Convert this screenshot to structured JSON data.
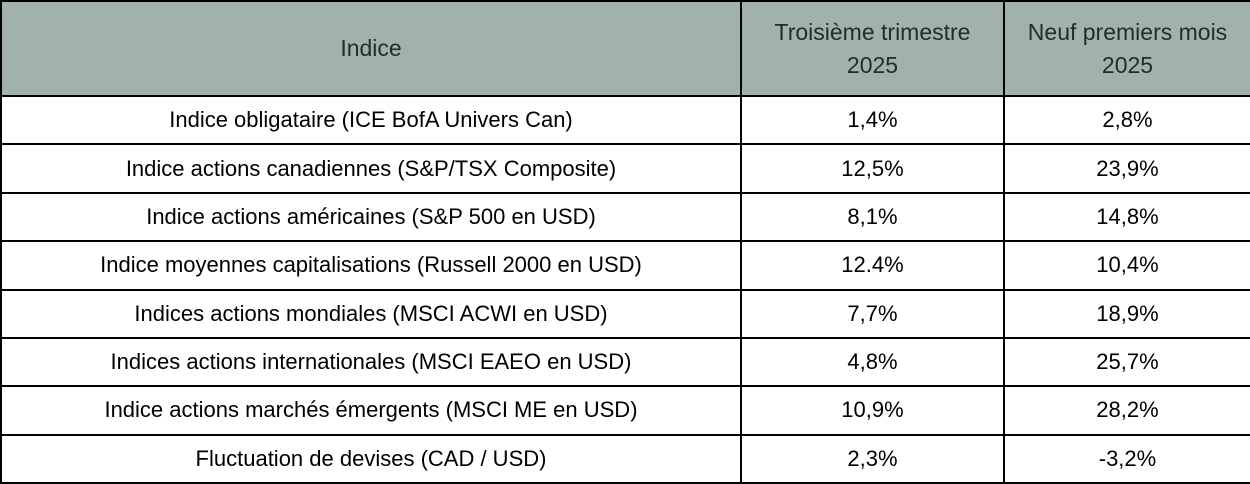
{
  "table": {
    "columns": [
      "Indice",
      "Troisième trimestre 2025",
      "Neuf premiers mois 2025"
    ],
    "rows": [
      {
        "indice": "Indice obligataire (ICE BofA Univers Can)",
        "q3_2025": "1,4%",
        "ytd_2025": "2,8%"
      },
      {
        "indice": "Indice actions canadiennes (S&P/TSX Composite)",
        "q3_2025": "12,5%",
        "ytd_2025": "23,9%"
      },
      {
        "indice": "Indice actions américaines (S&P 500 en USD)",
        "q3_2025": "8,1%",
        "ytd_2025": "14,8%"
      },
      {
        "indice": "Indice moyennes capitalisations (Russell 2000 en USD)",
        "q3_2025": "12.4%",
        "ytd_2025": "10,4%"
      },
      {
        "indice": "Indices actions mondiales (MSCI ACWI en USD)",
        "q3_2025": "7,7%",
        "ytd_2025": "18,9%"
      },
      {
        "indice": "Indices actions internationales (MSCI EAEO en USD)",
        "q3_2025": "4,8%",
        "ytd_2025": "25,7%"
      },
      {
        "indice": "Indice actions marchés émergents (MSCI ME en USD)",
        "q3_2025": "10,9%",
        "ytd_2025": "28,2%"
      },
      {
        "indice": "Fluctuation de devises (CAD / USD)",
        "q3_2025": "2,3%",
        "ytd_2025": "-3,2%"
      }
    ]
  },
  "colors": {
    "header_background": "#a1b2ac",
    "header_text": "#212e2a",
    "border": "#000000",
    "row_background": "#ffffff",
    "body_text": "#000000"
  },
  "chart_data": {
    "type": "table",
    "columns": [
      "Indice",
      "Troisième trimestre 2025",
      "Neuf premiers mois 2025"
    ],
    "rows": [
      [
        "Indice obligataire (ICE BofA Univers Can)",
        "1,4%",
        "2,8%"
      ],
      [
        "Indice actions canadiennes (S&P/TSX Composite)",
        "12,5%",
        "23,9%"
      ],
      [
        "Indice actions américaines (S&P 500 en USD)",
        "8,1%",
        "14,8%"
      ],
      [
        "Indice moyennes capitalisations (Russell 2000 en USD)",
        "12.4%",
        "10,4%"
      ],
      [
        "Indices actions mondiales (MSCI ACWI en USD)",
        "7,7%",
        "18,9%"
      ],
      [
        "Indices actions internationales (MSCI EAEO en USD)",
        "4,8%",
        "25,7%"
      ],
      [
        "Indice actions marchés émergents (MSCI ME en USD)",
        "10,9%",
        "28,2%"
      ],
      [
        "Fluctuation de devises (CAD / USD)",
        "2,3%",
        "-3,2%"
      ]
    ],
    "series": [
      {
        "name": "Troisième trimestre 2025",
        "values_pct": [
          1.4,
          12.5,
          8.1,
          12.4,
          7.7,
          4.8,
          10.9,
          2.3
        ]
      },
      {
        "name": "Neuf premiers mois 2025",
        "values_pct": [
          2.8,
          23.9,
          14.8,
          10.4,
          18.9,
          25.7,
          28.2,
          -3.2
        ]
      }
    ]
  }
}
